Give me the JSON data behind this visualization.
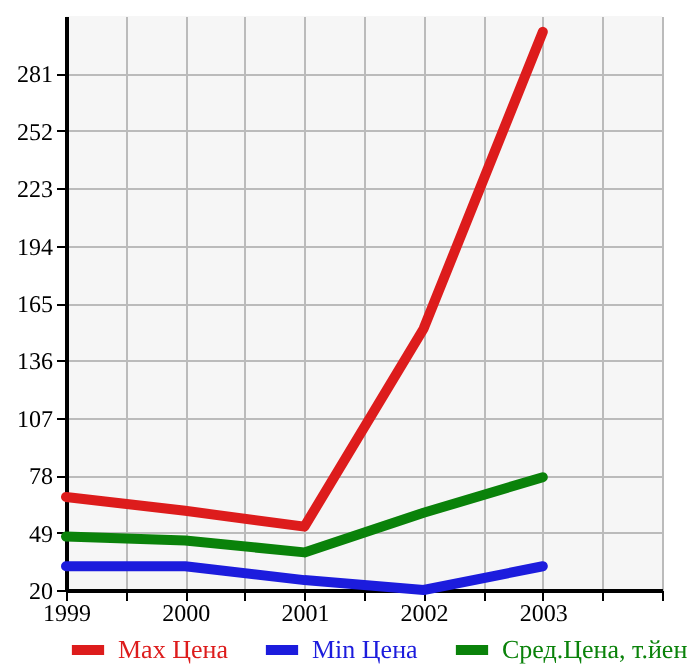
{
  "chart_data": {
    "type": "line",
    "x": [
      1999,
      2000,
      2001,
      2002,
      2003
    ],
    "xlim": [
      1999,
      2004
    ],
    "xticks": [
      1999,
      {
        "value": 1999.5,
        "label": null
      },
      2000,
      {
        "value": 2000.5,
        "label": null
      },
      2001,
      {
        "value": 2001.5,
        "label": null
      },
      2002,
      {
        "value": 2002.5,
        "label": null
      },
      2003,
      {
        "value": 2003.5,
        "label": null
      },
      {
        "value": 2004,
        "label": null
      }
    ],
    "ylim": [
      20,
      310
    ],
    "yticks": [
      20,
      49,
      78,
      107,
      136,
      165,
      194,
      223,
      252,
      281
    ],
    "series": [
      {
        "name": "Max Цена",
        "color": "#dd1c1c",
        "values": [
          67,
          60,
          52,
          152,
          302
        ]
      },
      {
        "name": "Min Цена",
        "color": "#1c1cdd",
        "values": [
          32,
          32,
          25,
          20,
          32
        ]
      },
      {
        "name": "Сред.Цена, т.йен",
        "color": "#0a820a",
        "values": [
          47,
          45,
          39,
          59,
          77
        ]
      }
    ],
    "grid": true,
    "legend": "bottom",
    "marker": "none",
    "line_style": "solid"
  }
}
